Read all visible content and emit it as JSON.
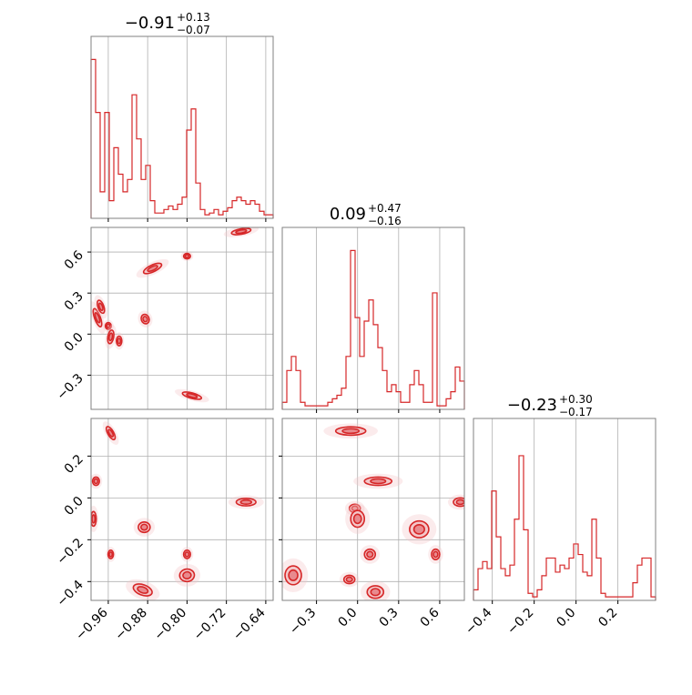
{
  "style": {
    "accent": "#d62728",
    "fill_light": "#f4c7c9",
    "fill_mid": "#e88a8e",
    "grid": "#b0b0b0",
    "frame": "#808080"
  },
  "chart_data": {
    "type": "corner",
    "grid": true,
    "parameters": [
      {
        "label": "",
        "range": [
          -0.995,
          -0.625
        ],
        "ticks": [
          -0.96,
          -0.88,
          -0.8,
          -0.72,
          -0.64
        ],
        "tick_labels": [
          "−0.96",
          "−0.88",
          "−0.80",
          "−0.72",
          "−0.64"
        ]
      },
      {
        "label": "",
        "range": [
          -0.55,
          0.78
        ],
        "ticks": [
          -0.3,
          0.0,
          0.3,
          0.6
        ],
        "tick_labels": [
          "−0.3",
          "0.0",
          "0.3",
          "0.6"
        ]
      },
      {
        "label": "",
        "range": [
          -0.49,
          0.38
        ],
        "ticks": [
          -0.4,
          -0.2,
          0.0,
          0.2
        ],
        "tick_labels": [
          "−0.4",
          "−0.2",
          "0.0",
          "0.2"
        ]
      }
    ],
    "titles": [
      {
        "value": "−0.91",
        "plus": "+0.13",
        "minus": "−0.07"
      },
      {
        "value": "0.09",
        "plus": "+0.47",
        "minus": "−0.16"
      },
      {
        "value": "−0.23",
        "plus": "+0.30",
        "minus": "−0.17"
      }
    ],
    "histograms": [
      {
        "param": 0,
        "heights": [
          0.9,
          0.6,
          0.15,
          0.6,
          0.1,
          0.4,
          0.25,
          0.15,
          0.22,
          0.7,
          0.45,
          0.22,
          0.3,
          0.1,
          0.03,
          0.03,
          0.05,
          0.07,
          0.05,
          0.08,
          0.12,
          0.5,
          0.62,
          0.2,
          0.05,
          0.02,
          0.03,
          0.05,
          0.02,
          0.04,
          0.06,
          0.1,
          0.12,
          0.1,
          0.08,
          0.1,
          0.08,
          0.04,
          0.02,
          0.02
        ]
      },
      {
        "param": 1,
        "heights": [
          0.04,
          0.22,
          0.3,
          0.22,
          0.04,
          0.02,
          0.02,
          0.02,
          0.02,
          0.02,
          0.04,
          0.06,
          0.08,
          0.12,
          0.3,
          0.9,
          0.52,
          0.3,
          0.5,
          0.62,
          0.48,
          0.35,
          0.22,
          0.1,
          0.14,
          0.1,
          0.04,
          0.04,
          0.14,
          0.22,
          0.14,
          0.04,
          0.04,
          0.66,
          0.02,
          0.02,
          0.06,
          0.1,
          0.24,
          0.16
        ]
      },
      {
        "param": 2,
        "heights": [
          0.06,
          0.18,
          0.22,
          0.18,
          0.62,
          0.36,
          0.18,
          0.14,
          0.2,
          0.46,
          0.82,
          0.4,
          0.04,
          0.02,
          0.06,
          0.14,
          0.24,
          0.24,
          0.16,
          0.2,
          0.18,
          0.24,
          0.32,
          0.26,
          0.16,
          0.14,
          0.46,
          0.24,
          0.04,
          0.02,
          0.02,
          0.02,
          0.02,
          0.02,
          0.02,
          0.1,
          0.2,
          0.24,
          0.24,
          0.02
        ]
      }
    ],
    "contour_blobs": [
      {
        "px": 0,
        "py": 1,
        "blobs": [
          [
            -0.982,
            0.12,
            0.006,
            0.07,
            20
          ],
          [
            -0.975,
            0.2,
            0.006,
            0.05,
            20
          ],
          [
            -0.96,
            0.06,
            0.006,
            0.025,
            0
          ],
          [
            -0.955,
            -0.02,
            0.006,
            0.05,
            -10
          ],
          [
            -0.938,
            -0.05,
            0.005,
            0.035,
            0
          ],
          [
            -0.885,
            0.11,
            0.008,
            0.035,
            20
          ],
          [
            -0.87,
            0.48,
            0.02,
            0.025,
            25
          ],
          [
            -0.8,
            0.57,
            0.007,
            0.02,
            0
          ],
          [
            -0.69,
            0.75,
            0.02,
            0.02,
            10
          ],
          [
            -0.79,
            -0.45,
            0.02,
            0.02,
            -15
          ]
        ]
      },
      {
        "px": 0,
        "py": 2,
        "blobs": [
          [
            -0.955,
            0.31,
            0.006,
            0.035,
            30
          ],
          [
            -0.985,
            0.08,
            0.007,
            0.02,
            0
          ],
          [
            -0.99,
            -0.1,
            0.004,
            0.035,
            0
          ],
          [
            -0.887,
            -0.14,
            0.012,
            0.025,
            0
          ],
          [
            -0.955,
            -0.27,
            0.004,
            0.02,
            0
          ],
          [
            -0.8,
            -0.27,
            0.007,
            0.02,
            0
          ],
          [
            -0.8,
            -0.37,
            0.015,
            0.03,
            5
          ],
          [
            -0.89,
            -0.44,
            0.02,
            0.025,
            -20
          ],
          [
            -0.68,
            -0.02,
            0.02,
            0.018,
            0
          ]
        ]
      },
      {
        "px": 1,
        "py": 2,
        "blobs": [
          [
            -0.05,
            0.32,
            0.11,
            0.02,
            0
          ],
          [
            0.15,
            0.08,
            0.1,
            0.02,
            0
          ],
          [
            -0.02,
            -0.05,
            0.04,
            0.02,
            0
          ],
          [
            0.0,
            -0.1,
            0.05,
            0.04,
            0
          ],
          [
            0.09,
            -0.27,
            0.04,
            0.025,
            0
          ],
          [
            0.45,
            -0.15,
            0.07,
            0.04,
            0
          ],
          [
            0.57,
            -0.27,
            0.03,
            0.025,
            0
          ],
          [
            0.75,
            -0.02,
            0.05,
            0.02,
            0
          ],
          [
            -0.47,
            -0.37,
            0.06,
            0.045,
            0
          ],
          [
            -0.06,
            -0.39,
            0.04,
            0.02,
            0
          ],
          [
            0.13,
            -0.45,
            0.06,
            0.03,
            0
          ]
        ]
      }
    ]
  }
}
